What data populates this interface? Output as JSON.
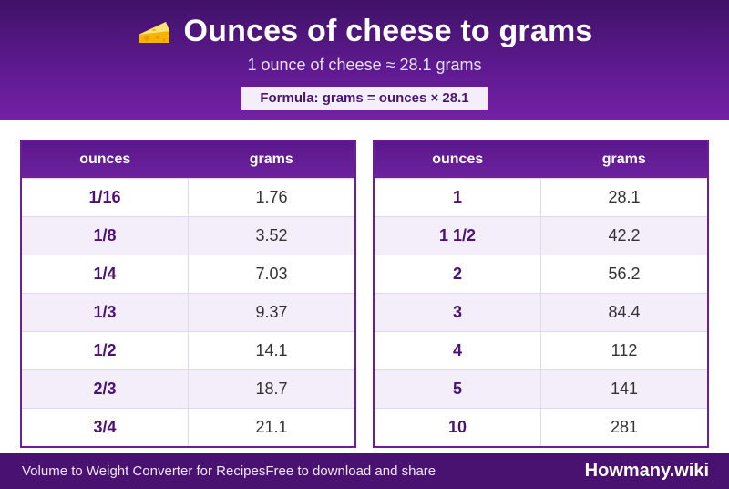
{
  "header": {
    "title": "Ounces of cheese to grams",
    "icon": "cheese-icon",
    "subtitle": "1 ounce of cheese ≈ 28.1 grams",
    "formula": "Formula: grams = ounces × 28.1"
  },
  "tables": {
    "headers": {
      "ounces": "ounces",
      "grams": "grams"
    },
    "left": [
      {
        "ounces": "1/16",
        "grams": "1.76"
      },
      {
        "ounces": "1/8",
        "grams": "3.52"
      },
      {
        "ounces": "1/4",
        "grams": "7.03"
      },
      {
        "ounces": "1/3",
        "grams": "9.37"
      },
      {
        "ounces": "1/2",
        "grams": "14.1"
      },
      {
        "ounces": "2/3",
        "grams": "18.7"
      },
      {
        "ounces": "3/4",
        "grams": "21.1"
      }
    ],
    "right": [
      {
        "ounces": "1",
        "grams": "28.1"
      },
      {
        "ounces": "1 1/2",
        "grams": "42.2"
      },
      {
        "ounces": "2",
        "grams": "56.2"
      },
      {
        "ounces": "3",
        "grams": "84.4"
      },
      {
        "ounces": "4",
        "grams": "112"
      },
      {
        "ounces": "5",
        "grams": "141"
      },
      {
        "ounces": "10",
        "grams": "281"
      }
    ]
  },
  "footer": {
    "left_text": "Volume to Weight Converter for RecipesFree to download and share",
    "brand": "Howmany.wiki"
  },
  "colors": {
    "header_purple": "#5d1a8f",
    "footer_purple": "#4a1270",
    "row_stripe": "#f4eefb",
    "ounces_text": "#4b1174"
  }
}
